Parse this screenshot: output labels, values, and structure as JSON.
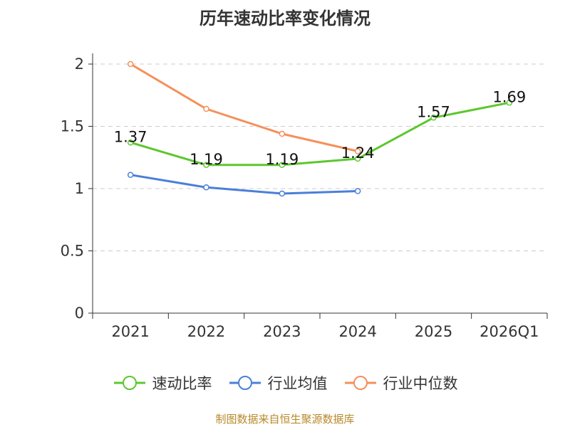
{
  "chart_data": {
    "type": "line",
    "title": "历年速动比率变化情况",
    "categories": [
      "2021",
      "2022",
      "2023",
      "2024",
      "2025",
      "2026Q1"
    ],
    "ylim": [
      0,
      2
    ],
    "yticks": [
      0,
      0.5,
      1,
      1.5,
      2
    ],
    "ytick_labels": [
      "0",
      "0.5",
      "1",
      "1.5",
      "2"
    ],
    "grid": true,
    "legend_position": "bottom",
    "series": [
      {
        "name": "速动比率",
        "color": "#5cc72e",
        "values": [
          1.37,
          1.19,
          1.19,
          1.24,
          1.57,
          1.69
        ],
        "labels": [
          "1.37",
          "1.19",
          "1.19",
          "1.24",
          "1.57",
          "1.69"
        ]
      },
      {
        "name": "行业均值",
        "color": "#4a7fd9",
        "values": [
          1.11,
          1.01,
          0.96,
          0.98,
          null,
          null
        ]
      },
      {
        "name": "行业中位数",
        "color": "#f5905a",
        "values": [
          2.0,
          1.64,
          1.44,
          1.3,
          null,
          null
        ]
      }
    ]
  },
  "footer": {
    "source": "制图数据来自恒生聚源数据库"
  }
}
